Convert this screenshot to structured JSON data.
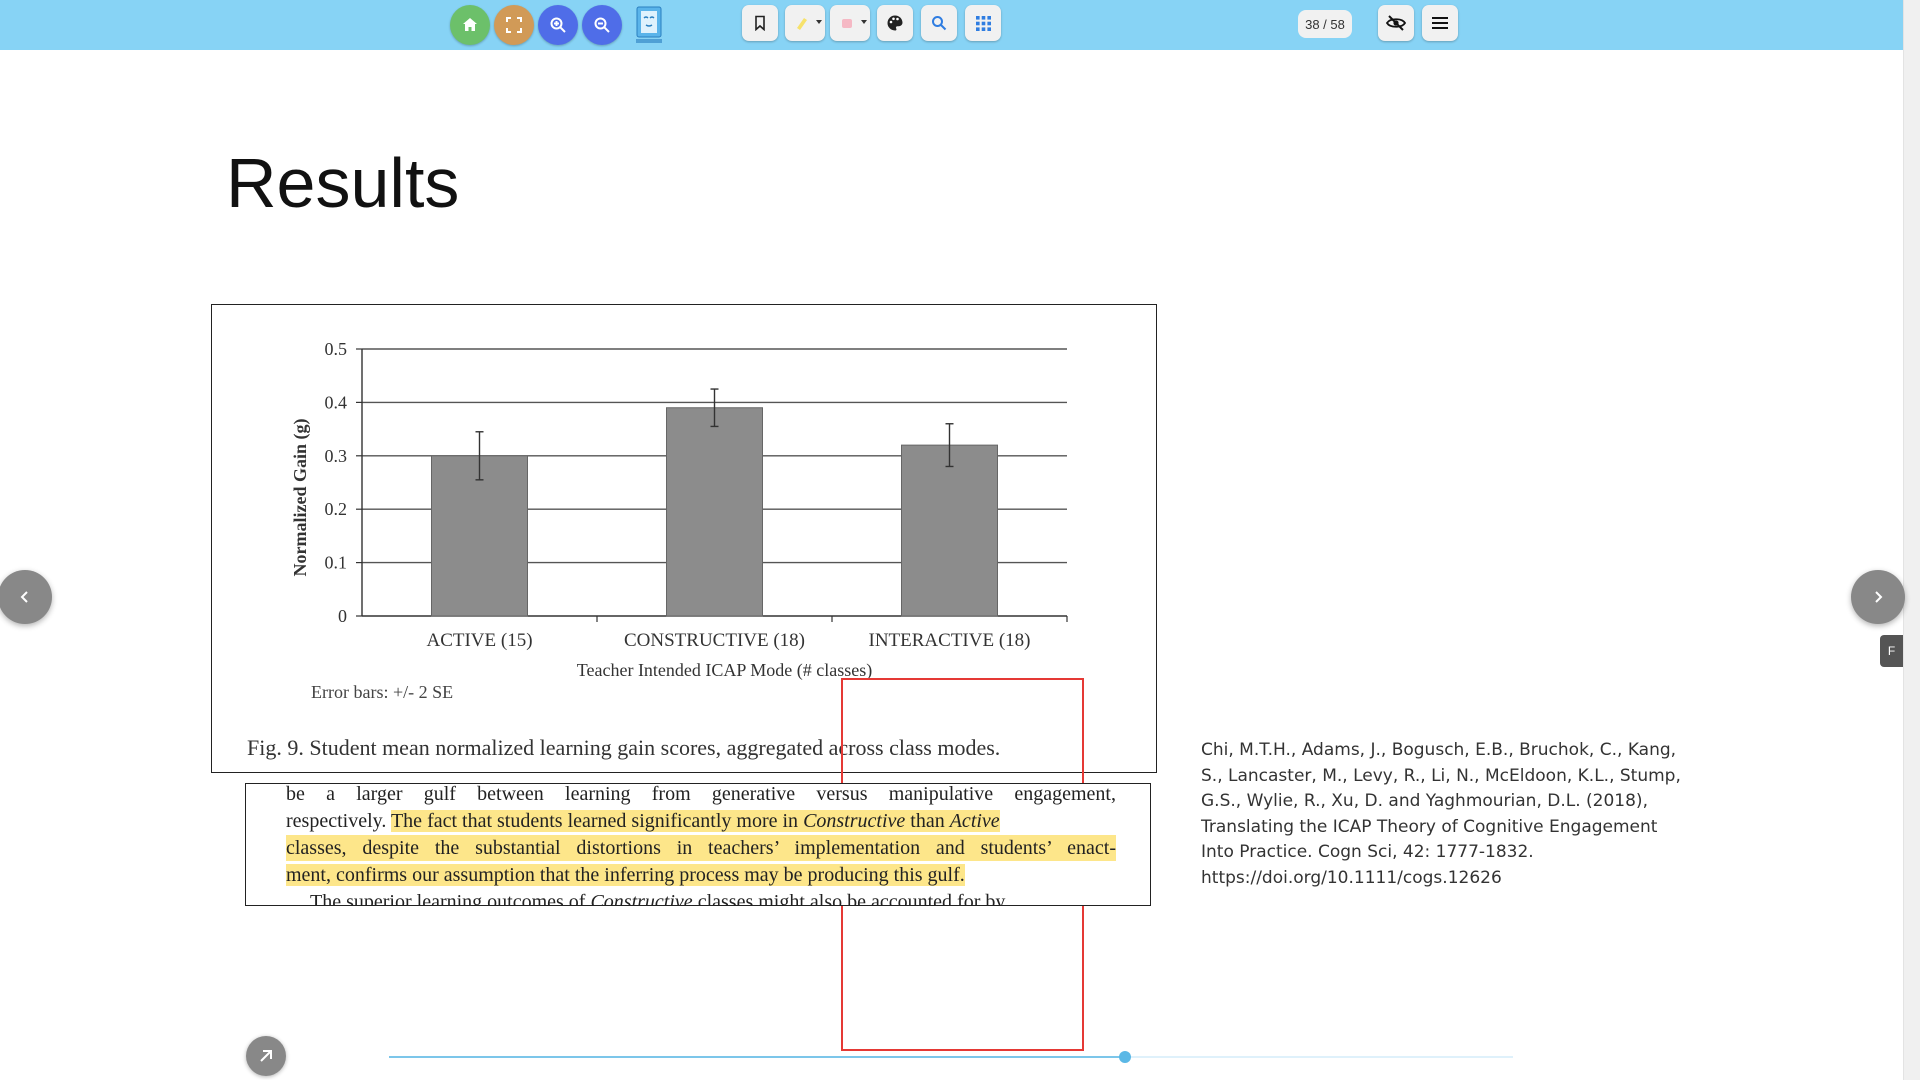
{
  "toolbar": {
    "page_counter": "38 / 58",
    "icons": {
      "home": "home-icon",
      "fullscreen": "fullscreen-icon",
      "zoom_in": "zoom-in-icon",
      "zoom_out": "zoom-out-icon",
      "app_logo": "app-logo-icon",
      "bookmark": "bookmark-icon",
      "highlighter": "highlighter-icon",
      "eraser": "eraser-icon",
      "palette": "palette-icon",
      "search": "search-icon",
      "grid": "grid-icon",
      "hide": "eye-off-icon",
      "menu": "menu-icon"
    },
    "colors": {
      "bar": "#87d3f5",
      "home": "#6cc06a",
      "fullscreen": "#d19a57",
      "zoom": "#4f6de8"
    }
  },
  "slide": {
    "title": "Results",
    "figure": {
      "error_note": "Error bars: +/- 2 SE",
      "caption": "Fig. 9.  Student mean normalized learning gain scores, aggregated across class modes."
    },
    "text_excerpt": {
      "line1": "be a larger gulf between learning from generative versus manipulative engagement,",
      "line2_plain": "respectively.",
      "line2_hl_a": "The fact that students learned significantly more in",
      "line2_hl_b": "Constructive",
      "line2_hl_c": "than",
      "line2_hl_d": "Active",
      "line3": "classes, despite the substantial distortions in teachers’ implementation and students’ enact-",
      "line4": "ment, confirms our assumption that the inferring process may be producing this gulf.",
      "line5_a": "The superior learning outcomes of",
      "line5_b": "Constructive",
      "line5_c": "classes might also be accounted for by"
    },
    "citation": "Chi, M.T.H., Adams, J., Bogusch, E.B., Bruchok, C., Kang, S., Lancaster, M., Levy, R., Li, N., McEldoon, K.L., Stump, G.S., Wylie, R., Xu, D. and Yaghmourian, D.L. (2018), Translating the ICAP Theory of Cognitive Engagement Into Practice. Cogn Sci, 42: 1777-1832. https://doi.org/10.1111/cogs.12626",
    "highlight_color": "#fde68a",
    "annotation_color": "#e53935"
  },
  "side_tab": "F",
  "progress": {
    "current": 38,
    "total": 58,
    "fraction": 0.655
  },
  "chart_data": {
    "type": "bar",
    "categories": [
      "ACTIVE (15)",
      "CONSTRUCTIVE (18)",
      "INTERACTIVE (18)"
    ],
    "values": [
      0.3,
      0.39,
      0.32
    ],
    "error": [
      0.045,
      0.035,
      0.04
    ],
    "ylim": [
      0,
      0.5
    ],
    "yticks": [
      0,
      0.1,
      0.2,
      0.3,
      0.4,
      0.5
    ],
    "ytick_labels": [
      "0",
      "0.1",
      "0.2",
      "0.3",
      "0.4",
      "0.5"
    ],
    "xlabel": "Teacher Intended ICAP Mode (# classes)",
    "ylabel": "Normalized Gain (g)",
    "grid": true,
    "bar_color": "#8c8c8c"
  }
}
